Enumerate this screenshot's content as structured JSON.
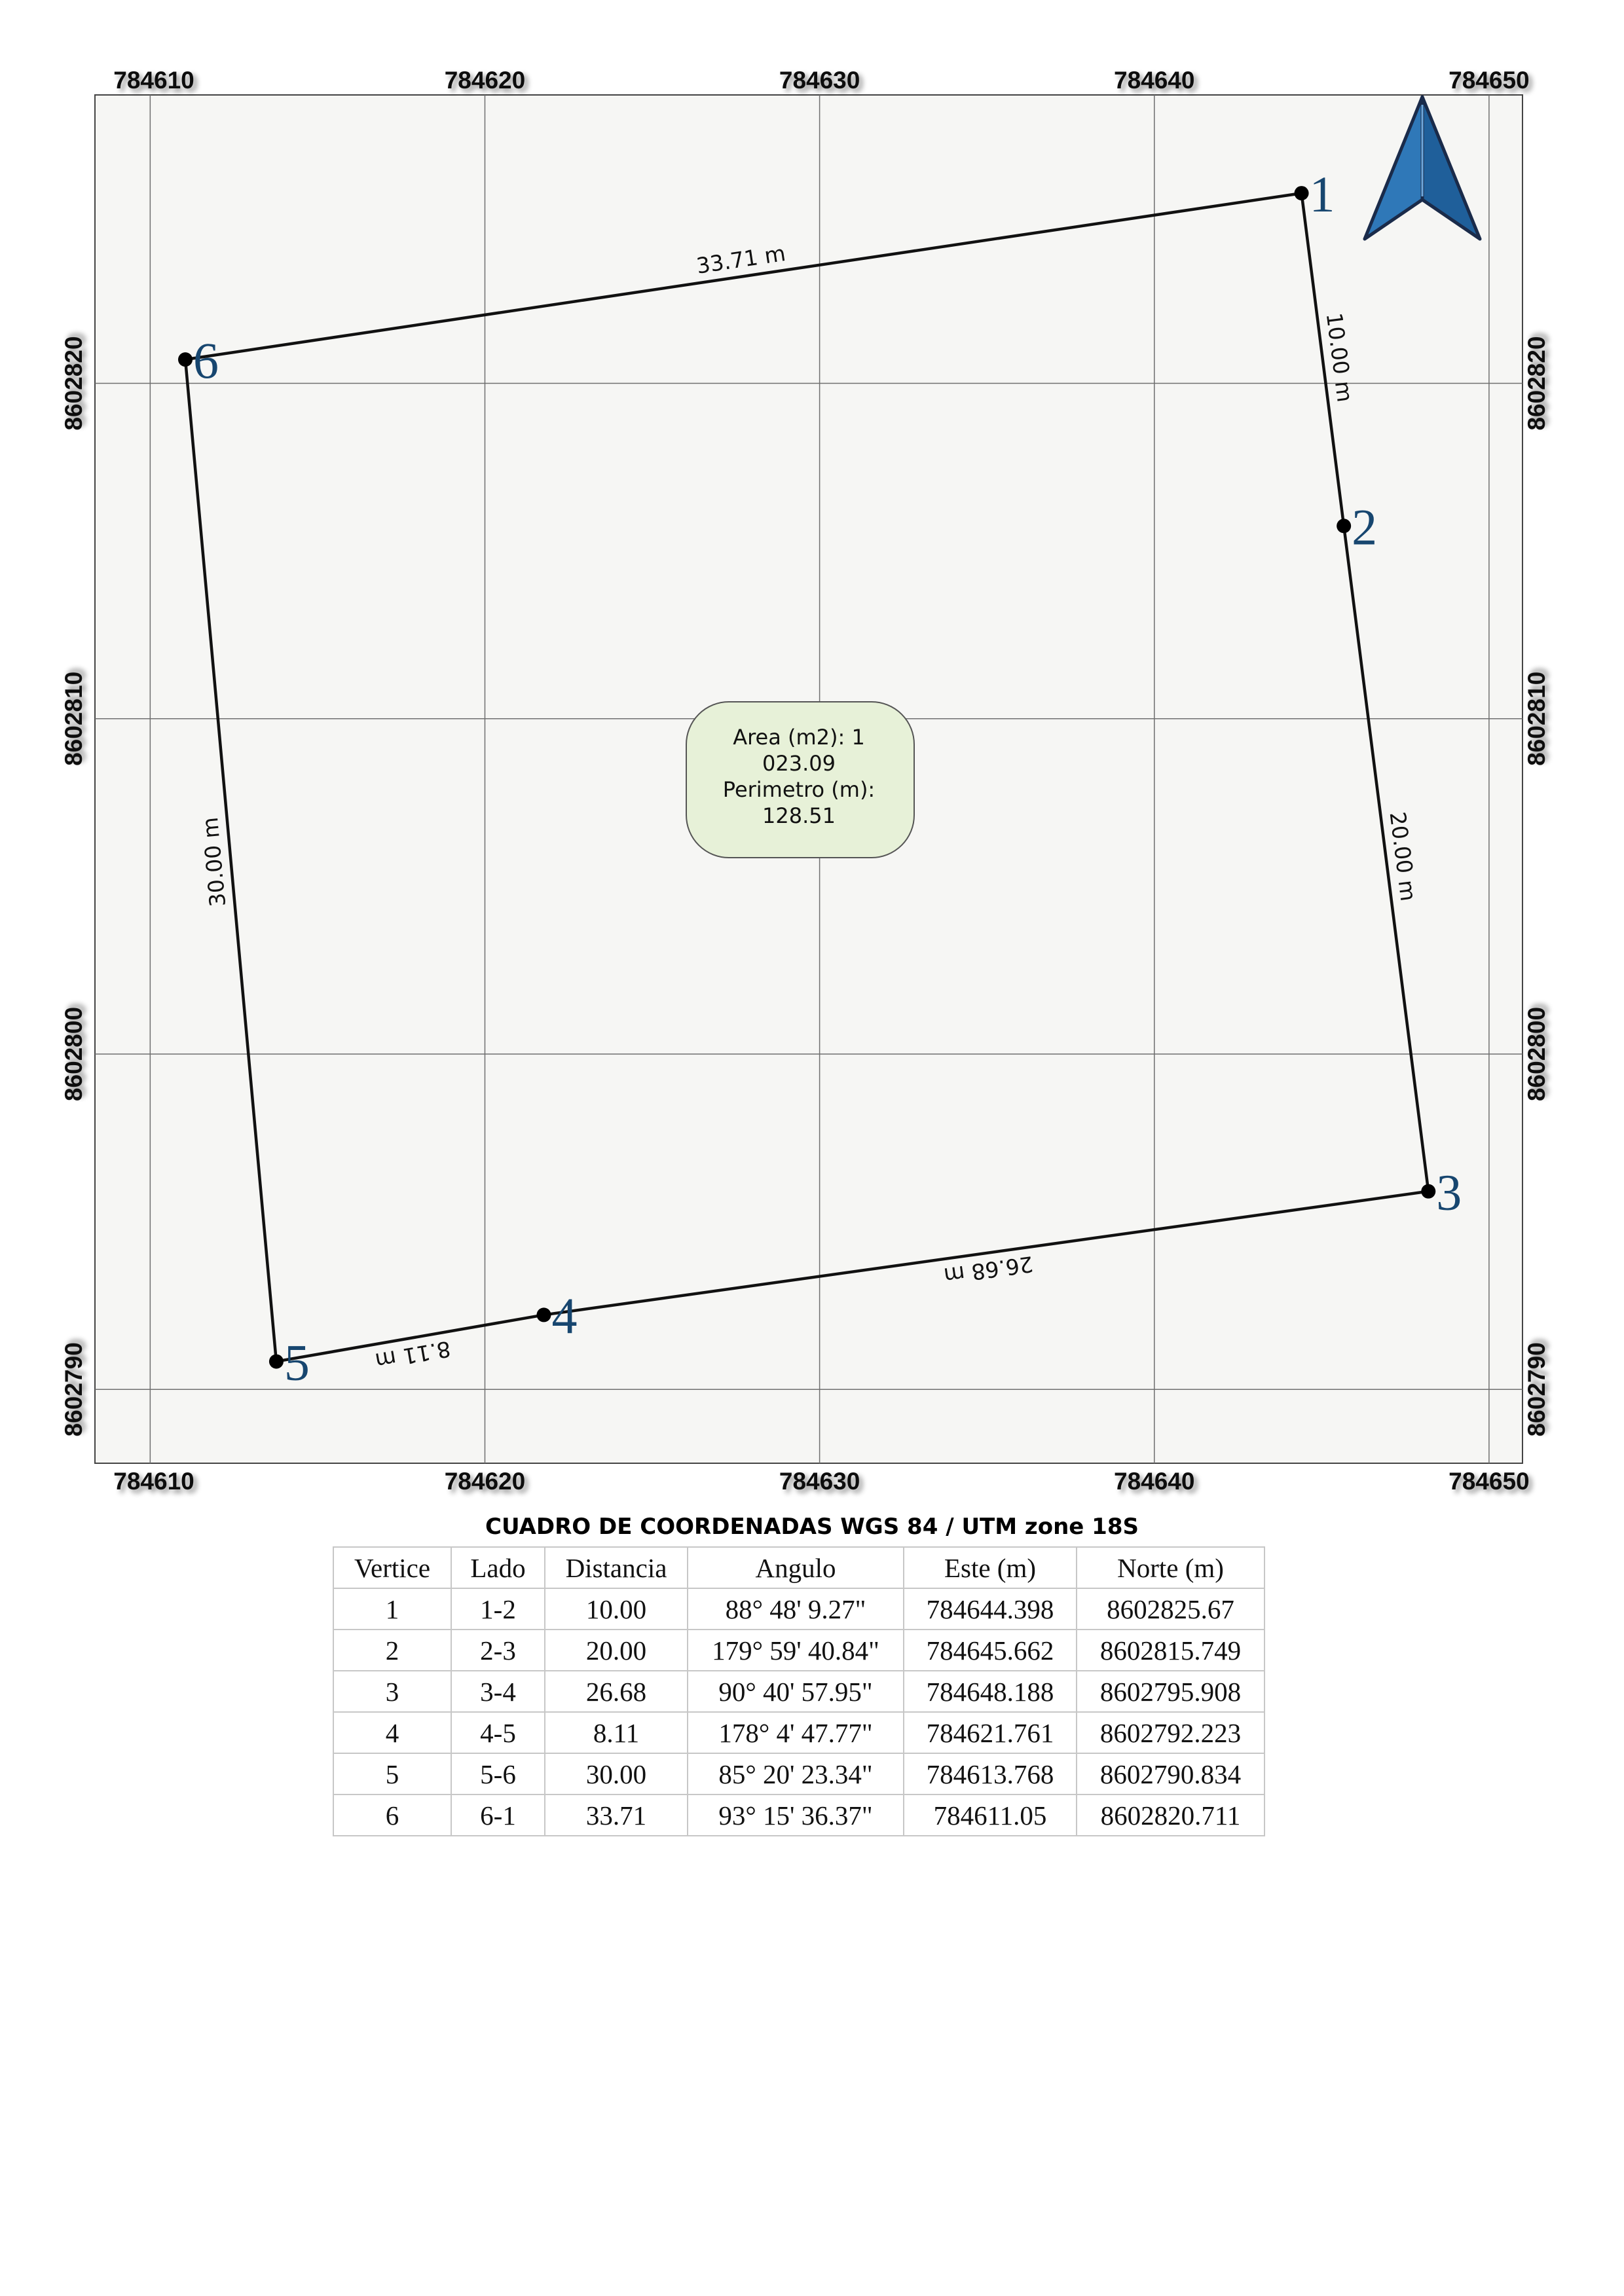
{
  "map": {
    "x_ticks": [
      "784610",
      "784620",
      "784630",
      "784640",
      "784650"
    ],
    "y_ticks": [
      "8602820",
      "8602810",
      "8602800",
      "8602790"
    ],
    "vertices": [
      {
        "label": "1",
        "este": 784644.398,
        "norte": 8602825.67
      },
      {
        "label": "2",
        "este": 784645.662,
        "norte": 8602815.749
      },
      {
        "label": "3",
        "este": 784648.188,
        "norte": 8602795.908
      },
      {
        "label": "4",
        "este": 784621.761,
        "norte": 8602792.223
      },
      {
        "label": "5",
        "este": 784613.768,
        "norte": 8602790.834
      },
      {
        "label": "6",
        "este": 784611.05,
        "norte": 8602820.711
      }
    ],
    "segment_labels": [
      "10.00 m",
      "20.00 m",
      "26.68 m",
      "8.11 m",
      "30.00 m",
      "33.71 m"
    ],
    "stats": {
      "line1": "Area (m2): 1",
      "line2": "023.09",
      "line3": "Perimetro (m):",
      "line4": "128.51"
    },
    "colors": {
      "background": "#f6f6f4",
      "grid": "#6f6f6f",
      "boundary": "#111111",
      "vertex_label": "#17466f",
      "north_arrow": "#2f78b8",
      "stats_box_fill": "#e7f1d8"
    },
    "north_arrow_icon": "north-arrow-icon"
  },
  "table": {
    "title": "CUADRO DE COORDENADAS WGS 84 / UTM zone 18S",
    "headers": [
      "Vertice",
      "Lado",
      "Distancia",
      "Angulo",
      "Este (m)",
      "Norte (m)"
    ],
    "rows": [
      [
        "1",
        "1-2",
        "10.00",
        "88° 48' 9.27\"",
        "784644.398",
        "8602825.67"
      ],
      [
        "2",
        "2-3",
        "20.00",
        "179° 59' 40.84\"",
        "784645.662",
        "8602815.749"
      ],
      [
        "3",
        "3-4",
        "26.68",
        "90° 40' 57.95\"",
        "784648.188",
        "8602795.908"
      ],
      [
        "4",
        "4-5",
        "8.11",
        "178° 4' 47.77\"",
        "784621.761",
        "8602792.223"
      ],
      [
        "5",
        "5-6",
        "30.00",
        "85° 20' 23.34\"",
        "784613.768",
        "8602790.834"
      ],
      [
        "6",
        "6-1",
        "33.71",
        "93° 15' 36.37\"",
        "784611.05",
        "8602820.711"
      ]
    ]
  }
}
